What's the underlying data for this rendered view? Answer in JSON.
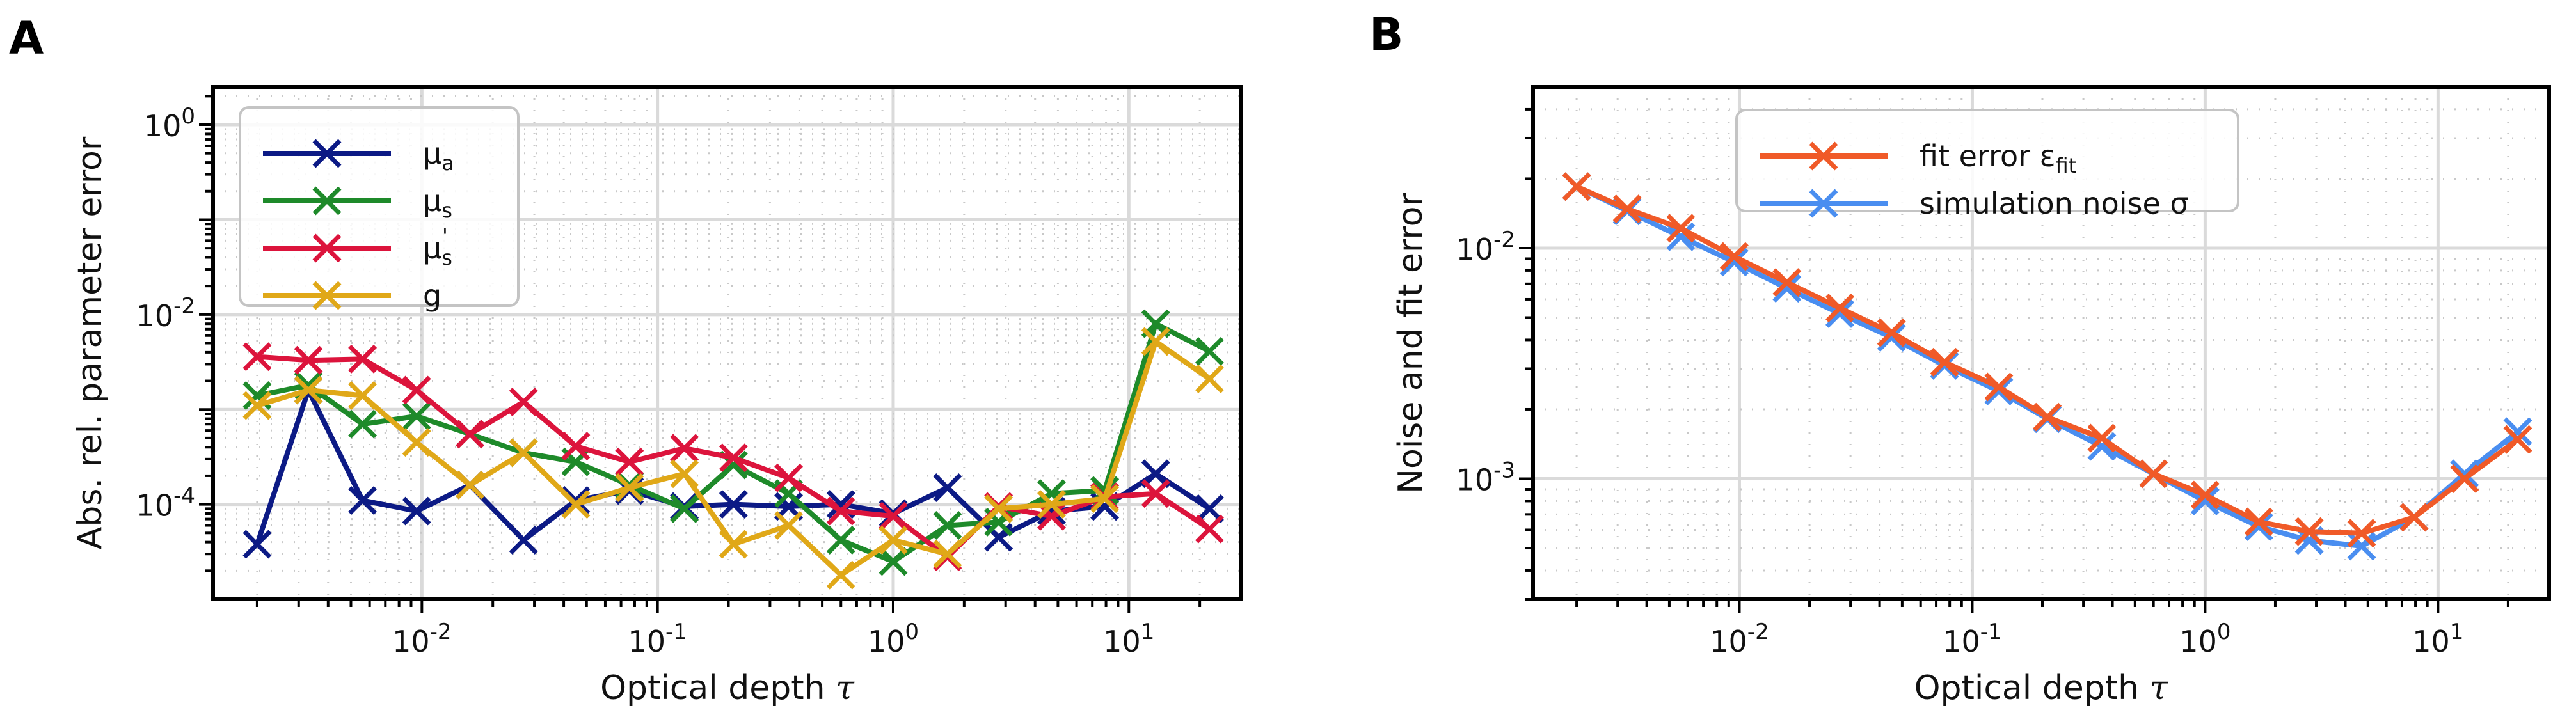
{
  "chart_data": [
    {
      "panel": "A",
      "type": "line",
      "xscale": "log",
      "yscale": "log",
      "xlim": [
        0.0013,
        30
      ],
      "ylim": [
        1e-05,
        2.5
      ],
      "xlabel": "Optical depth",
      "xlabel_symbol": "τ",
      "ylabel": "Abs. rel. parameter error",
      "xticks": [
        {
          "value": 0.01,
          "base": "10",
          "exp": "-2"
        },
        {
          "value": 0.1,
          "base": "10",
          "exp": "-1"
        },
        {
          "value": 1,
          "base": "10",
          "exp": "0"
        },
        {
          "value": 10,
          "base": "10",
          "exp": "1"
        }
      ],
      "yticks": [
        {
          "value": 0.0001,
          "base": "10",
          "exp": "-4"
        },
        {
          "value": 0.01,
          "base": "10",
          "exp": "-2"
        },
        {
          "value": 1,
          "base": "10",
          "exp": "0"
        }
      ],
      "grid": true,
      "legend_position": "top-left",
      "x": [
        0.002,
        0.0033,
        0.0056,
        0.0095,
        0.016,
        0.027,
        0.045,
        0.076,
        0.13,
        0.21,
        0.36,
        0.6,
        1.0,
        1.7,
        2.8,
        4.7,
        7.9,
        13,
        22
      ],
      "series": [
        {
          "name": "μa",
          "label_main": "μ",
          "label_sub": "a",
          "color": "#0c1a85",
          "values": [
            3.8e-05,
            0.0016,
            0.00011,
            8.5e-05,
            0.00016,
            4.2e-05,
            0.00011,
            0.00014,
            9.5e-05,
            0.0001,
            9.5e-05,
            0.0001,
            8e-05,
            0.00015,
            4.5e-05,
            8.5e-05,
            9.5e-05,
            0.00021,
            9e-05
          ]
        },
        {
          "name": "μs",
          "label_main": "μ",
          "label_sub": "s",
          "color": "#1e8a2a",
          "values": [
            0.0014,
            0.0018,
            0.0007,
            0.00085,
            0.00055,
            0.00035,
            0.00028,
            0.00016,
            9e-05,
            0.00026,
            0.00013,
            4.2e-05,
            2.5e-05,
            6e-05,
            6.5e-05,
            0.00013,
            0.00014,
            0.008,
            0.0041
          ]
        },
        {
          "name": "μs'",
          "label_main": "μ",
          "label_sub": "s",
          "label_sup": "'",
          "color": "#dc143c",
          "values": [
            0.0036,
            0.0033,
            0.0034,
            0.0016,
            0.00055,
            0.0012,
            0.00041,
            0.00028,
            0.00039,
            0.00031,
            0.00019,
            8.5e-05,
            7.5e-05,
            2.8e-05,
            9.5e-05,
            7.5e-05,
            0.00012,
            0.00013,
            5.5e-05
          ]
        },
        {
          "name": "g",
          "label_main": "g",
          "color": "#e0a818",
          "values": [
            0.0011,
            0.0016,
            0.0014,
            0.00045,
            0.00016,
            0.00035,
            0.0001,
            0.00015,
            0.00021,
            3.8e-05,
            6e-05,
            1.8e-05,
            4.2e-05,
            3e-05,
            9e-05,
            0.0001,
            0.000115,
            0.0052,
            0.0021
          ]
        }
      ]
    },
    {
      "panel": "B",
      "type": "line",
      "xscale": "log",
      "yscale": "log",
      "xlim": [
        0.0013,
        30
      ],
      "ylim": [
        0.0003,
        0.05
      ],
      "xlabel": "Optical depth",
      "xlabel_symbol": "τ",
      "ylabel": "Noise and fit error",
      "xticks": [
        {
          "value": 0.01,
          "base": "10",
          "exp": "-2"
        },
        {
          "value": 0.1,
          "base": "10",
          "exp": "-1"
        },
        {
          "value": 1,
          "base": "10",
          "exp": "0"
        },
        {
          "value": 10,
          "base": "10",
          "exp": "1"
        }
      ],
      "yticks": [
        {
          "value": 0.001,
          "base": "10",
          "exp": "-3"
        },
        {
          "value": 0.01,
          "base": "10",
          "exp": "-2"
        }
      ],
      "grid": true,
      "legend_position": "top-center",
      "x": [
        0.002,
        0.0033,
        0.0056,
        0.0095,
        0.016,
        0.027,
        0.045,
        0.076,
        0.13,
        0.21,
        0.36,
        0.6,
        1.0,
        1.7,
        2.8,
        4.7,
        7.9,
        13,
        22
      ],
      "series": [
        {
          "name": "simulation noise σ",
          "label_main": "simulation noise σ",
          "color": "#4a8ef0",
          "values": [
            0.0185,
            0.0145,
            0.0112,
            0.0087,
            0.0067,
            0.0052,
            0.0041,
            0.0031,
            0.0024,
            0.00182,
            0.00138,
            0.00105,
            0.0008,
            0.00062,
            0.00054,
            0.00051,
            0.00068,
            0.00105,
            0.0016
          ]
        },
        {
          "name": "fit error εfit",
          "label_main": "fit error ε",
          "label_sub": "fit",
          "color": "#f05a28",
          "values": [
            0.0185,
            0.0148,
            0.0122,
            0.0092,
            0.0071,
            0.0055,
            0.0043,
            0.0032,
            0.0025,
            0.00185,
            0.0015,
            0.00105,
            0.00085,
            0.00065,
            0.00059,
            0.00058,
            0.00068,
            0.001,
            0.00148
          ]
        }
      ],
      "legend_order": [
        1,
        0
      ]
    }
  ],
  "panel_labels": {
    "a": "A",
    "b": "B"
  }
}
